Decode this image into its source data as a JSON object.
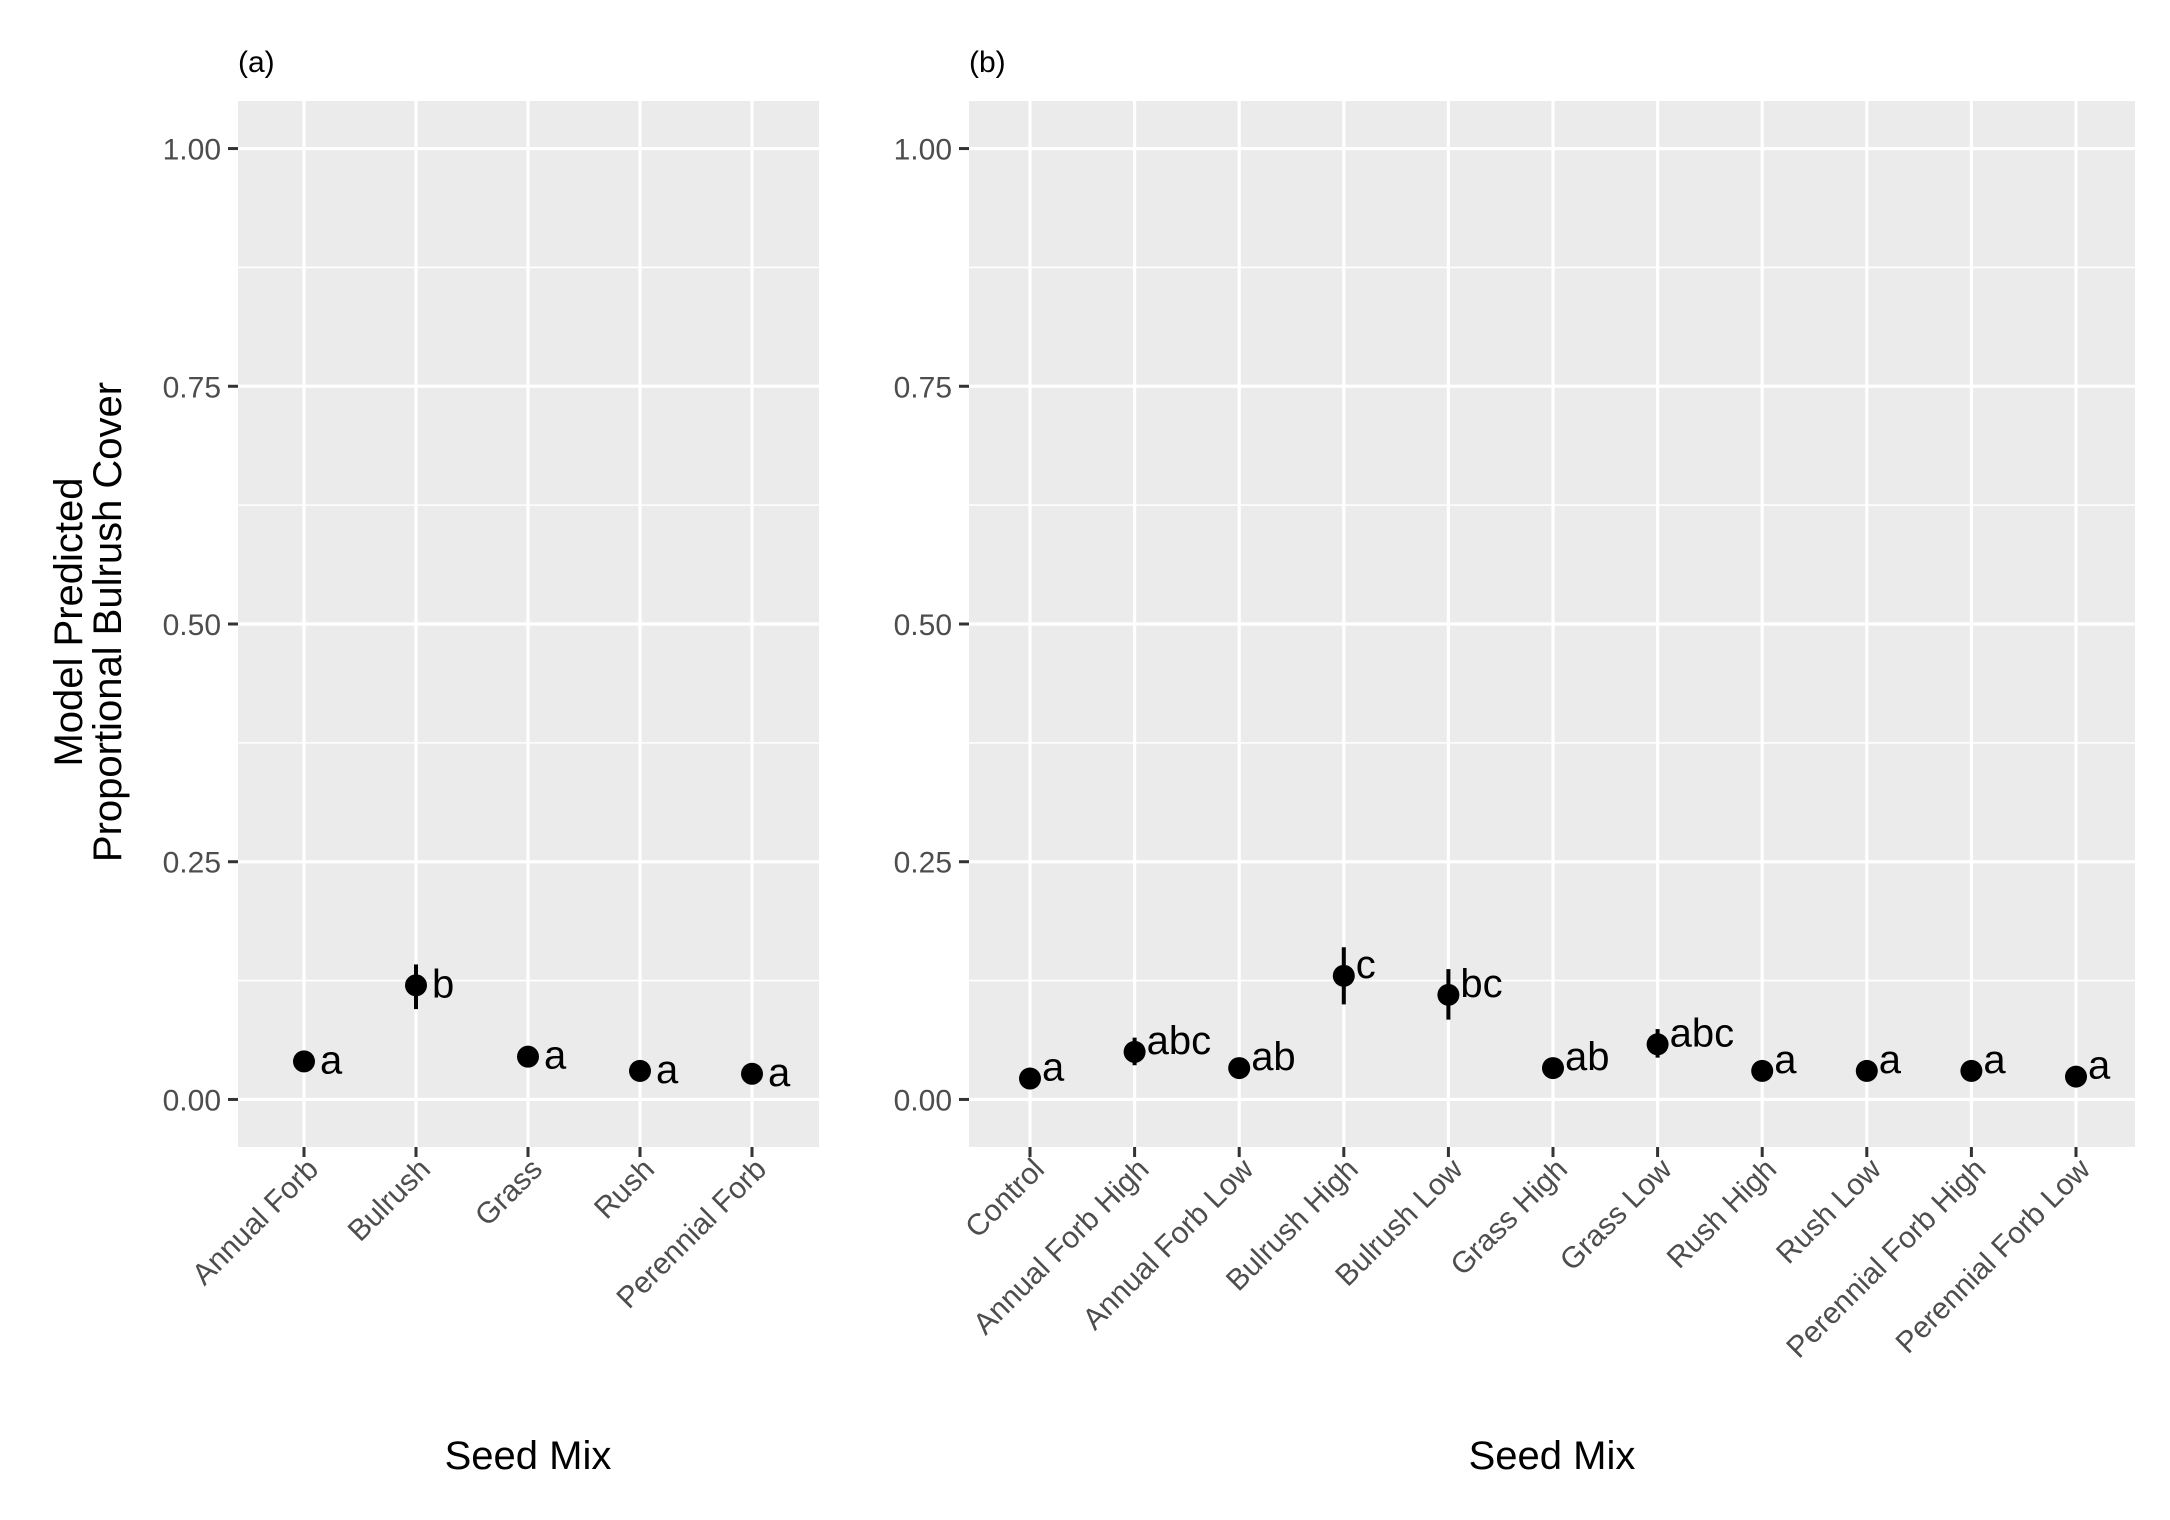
{
  "colors": {
    "panel_background": "#EBEBEB",
    "grid": "#FFFFFF",
    "tick_label": "#4D4D4D",
    "point": "#000000"
  },
  "shared_y_axis_title": [
    "Model Predicted",
    "Proportional Bulrush Cover"
  ],
  "chart_data": [
    {
      "type": "scatter",
      "panel_label": "(a)",
      "xlabel": "Seed Mix",
      "ylim": [
        -0.05,
        1.05
      ],
      "yticks": [
        "0.00",
        "0.25",
        "0.50",
        "0.75",
        "1.00"
      ],
      "grid": true,
      "categories": [
        "Annual Forb",
        "Bulrush",
        "Grass",
        "Rush",
        "Perennial Forb"
      ],
      "series": [
        {
          "values": [
            0.04,
            0.12,
            0.045,
            0.03,
            0.027
          ],
          "error_low": [
            0.035,
            0.095,
            0.04,
            0.026,
            0.023
          ],
          "error_high": [
            0.046,
            0.142,
            0.05,
            0.035,
            0.031
          ],
          "letters": [
            "a",
            "b",
            "a",
            "a",
            "a"
          ]
        }
      ]
    },
    {
      "type": "scatter",
      "panel_label": "(b)",
      "xlabel": "Seed Mix",
      "ylim": [
        -0.05,
        1.05
      ],
      "yticks": [
        "0.00",
        "0.25",
        "0.50",
        "0.75",
        "1.00"
      ],
      "grid": true,
      "categories": [
        "Control",
        "Annual Forb High",
        "Annual Forb Low",
        "Bulrush High",
        "Bulrush Low",
        "Grass High",
        "Grass Low",
        "Rush High",
        "Rush Low",
        "Perennial Forb High",
        "Perennial Forb Low"
      ],
      "series": [
        {
          "values": [
            0.022,
            0.05,
            0.033,
            0.13,
            0.11,
            0.033,
            0.058,
            0.03,
            0.03,
            0.03,
            0.024
          ],
          "error_low": [
            0.018,
            0.036,
            0.028,
            0.1,
            0.084,
            0.028,
            0.044,
            0.026,
            0.026,
            0.026,
            0.02
          ],
          "error_high": [
            0.027,
            0.065,
            0.039,
            0.16,
            0.137,
            0.039,
            0.074,
            0.035,
            0.035,
            0.035,
            0.029
          ],
          "letters": [
            "a",
            "abc",
            "ab",
            "c",
            "bc",
            "ab",
            "abc",
            "a",
            "a",
            "a",
            "a"
          ]
        }
      ]
    }
  ]
}
